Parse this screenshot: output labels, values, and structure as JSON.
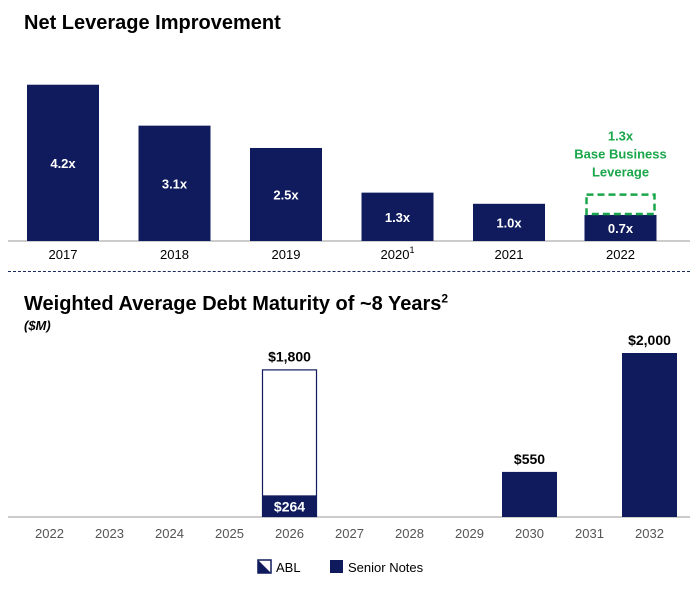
{
  "chart_data": [
    {
      "type": "bar",
      "title": "Net Leverage Improvement",
      "categories": [
        "2017",
        "2018",
        "2019",
        "2020",
        "2021",
        "2022"
      ],
      "category_superscripts": [
        "",
        "",
        "",
        "1",
        "",
        ""
      ],
      "values": [
        4.2,
        3.1,
        2.5,
        1.3,
        1.0,
        0.7
      ],
      "value_labels": [
        "4.2x",
        "3.1x",
        "2.5x",
        "1.3x",
        "1.0x",
        "0.7x"
      ],
      "annotation": {
        "category": "2022",
        "value": 1.3,
        "lines": [
          "1.3x",
          "Base Business",
          "Leverage"
        ]
      },
      "ylim": [
        0,
        4.3
      ],
      "colors": {
        "bar": "#0f1b5c",
        "annotation": "#1aa64a"
      }
    },
    {
      "type": "bar",
      "title": "Weighted Average Debt Maturity of ~8 Years",
      "title_superscript": "2",
      "subtitle": "($M)",
      "categories": [
        "2022",
        "2023",
        "2024",
        "2025",
        "2026",
        "2027",
        "2028",
        "2029",
        "2030",
        "2031",
        "2032"
      ],
      "series": [
        {
          "name": "ABL",
          "values": [
            0,
            0,
            0,
            0,
            1800,
            0,
            0,
            0,
            0,
            0,
            0
          ]
        },
        {
          "name": "Senior Notes",
          "values": [
            0,
            0,
            0,
            0,
            264,
            0,
            0,
            0,
            550,
            0,
            2000
          ]
        }
      ],
      "value_labels": [
        {
          "category": "2026",
          "series": "ABL",
          "text": "$1,800"
        },
        {
          "category": "2026",
          "series": "Senior Notes",
          "text": "$264"
        },
        {
          "category": "2030",
          "series": "Senior Notes",
          "text": "$550"
        },
        {
          "category": "2032",
          "series": "Senior Notes",
          "text": "$2,000"
        }
      ],
      "ylim": [
        0,
        2000
      ],
      "colors": {
        "senior_notes": "#0f1b5c",
        "abl_fill": "#ffffff",
        "abl_border": "#0f1b5c"
      },
      "legend": [
        {
          "name": "ABL",
          "style": "abl"
        },
        {
          "name": "Senior Notes",
          "style": "senior"
        }
      ]
    }
  ]
}
